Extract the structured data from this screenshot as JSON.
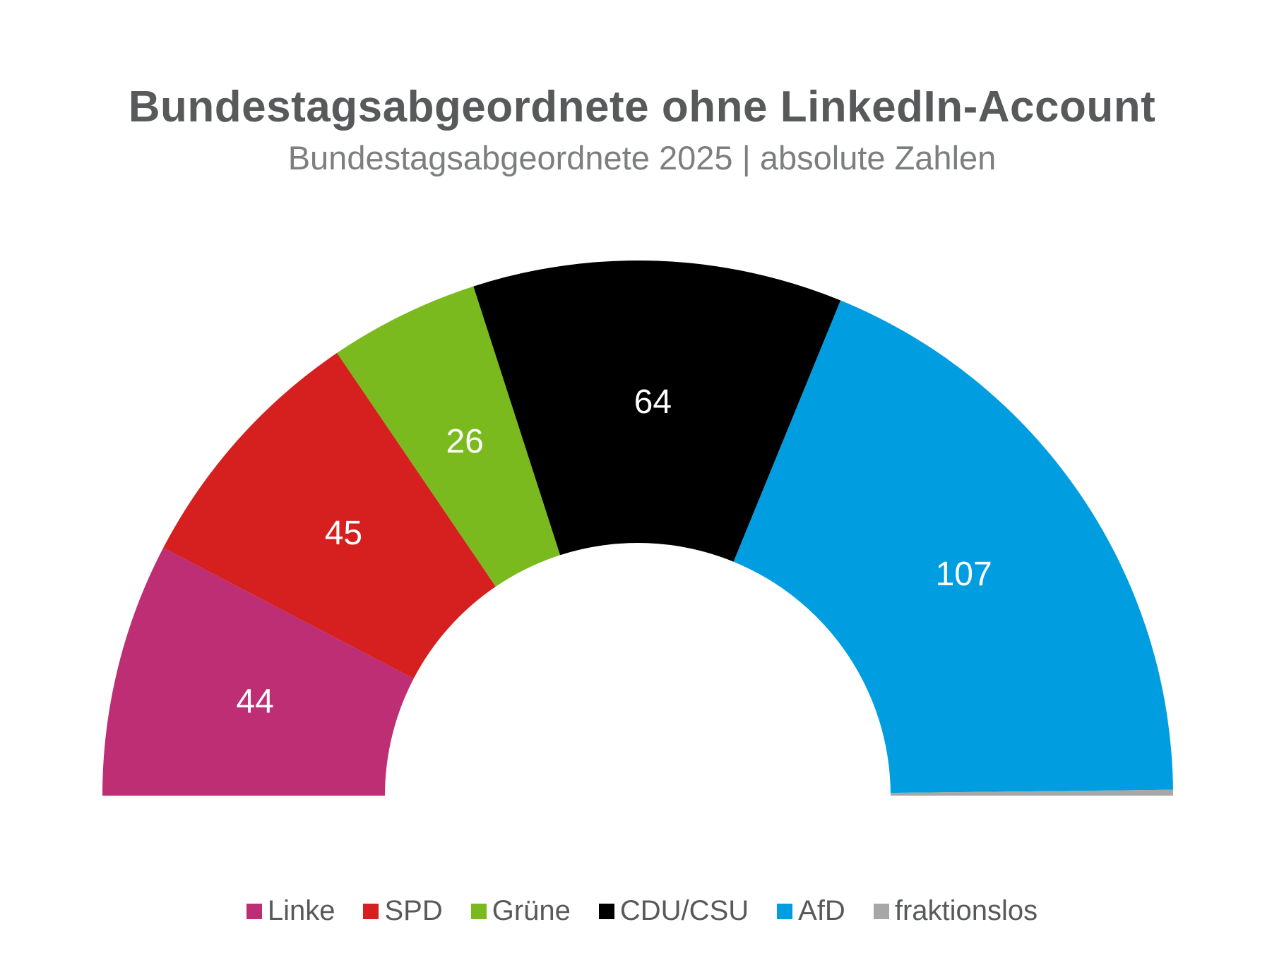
{
  "chart_data": {
    "type": "pie",
    "variant": "half-donut",
    "title": "Bundestagsabgeordnete ohne LinkedIn-Account",
    "subtitle": "Bundestagsabgeordnete 2025 | absolute Zahlen",
    "categories": [
      "Linke",
      "SPD",
      "Grüne",
      "CDU/CSU",
      "AfD",
      "fraktionslos"
    ],
    "values": [
      44,
      45,
      26,
      64,
      107,
      1
    ],
    "data_labels": [
      "44",
      "45",
      "26",
      "64",
      "107",
      ""
    ],
    "colors": [
      "#bd2e74",
      "#d61f1f",
      "#7aba1f",
      "#000000",
      "#009ee0",
      "#a7a7a7"
    ],
    "legend_position": "bottom",
    "label_color": "#ffffff"
  },
  "legend": {
    "items": [
      {
        "label": "Linke",
        "color": "#bd2e74"
      },
      {
        "label": "SPD",
        "color": "#d61f1f"
      },
      {
        "label": "Grüne",
        "color": "#7aba1f"
      },
      {
        "label": "CDU/CSU",
        "color": "#000000"
      },
      {
        "label": "AfD",
        "color": "#009ee0"
      },
      {
        "label": "fraktionslos",
        "color": "#a7a7a7"
      }
    ]
  }
}
